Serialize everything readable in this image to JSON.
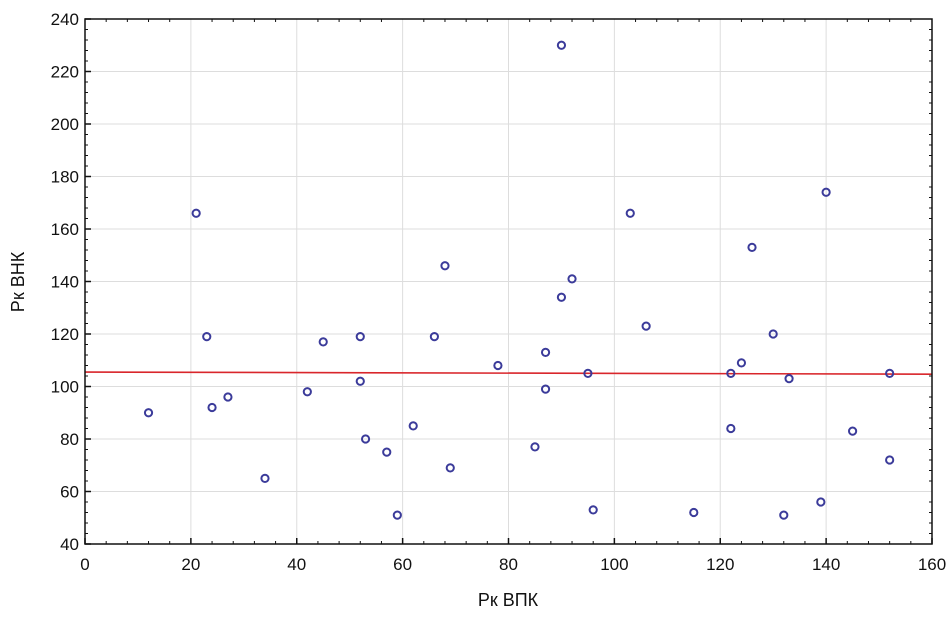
{
  "chart_data": {
    "type": "scatter",
    "title": "",
    "xlabel": "Рк ВПК",
    "ylabel": "Рк ВНК",
    "xlim": [
      0,
      160
    ],
    "ylim": [
      40,
      240
    ],
    "xticks": [
      0,
      20,
      40,
      60,
      80,
      100,
      120,
      140,
      160
    ],
    "yticks": [
      40,
      60,
      80,
      100,
      120,
      140,
      160,
      180,
      200,
      220,
      240
    ],
    "grid": true,
    "marker_color": "#3b3b9a",
    "fit_line_color": "#d9262b",
    "fit_line": {
      "x": [
        0,
        160
      ],
      "y": [
        105.5,
        104.7
      ]
    },
    "points": [
      [
        12,
        90
      ],
      [
        21,
        166
      ],
      [
        23,
        119
      ],
      [
        24,
        92
      ],
      [
        27,
        96
      ],
      [
        34,
        65
      ],
      [
        42,
        98
      ],
      [
        45,
        117
      ],
      [
        52,
        119
      ],
      [
        52,
        102
      ],
      [
        53,
        80
      ],
      [
        57,
        75
      ],
      [
        59,
        51
      ],
      [
        62,
        85
      ],
      [
        66,
        119
      ],
      [
        68,
        146
      ],
      [
        69,
        69
      ],
      [
        78,
        108
      ],
      [
        85,
        77
      ],
      [
        87,
        113
      ],
      [
        87,
        99
      ],
      [
        90,
        230
      ],
      [
        90,
        134
      ],
      [
        92,
        141
      ],
      [
        95,
        105
      ],
      [
        96,
        53
      ],
      [
        103,
        166
      ],
      [
        106,
        123
      ],
      [
        115,
        52
      ],
      [
        122,
        105
      ],
      [
        122,
        84
      ],
      [
        124,
        109
      ],
      [
        126,
        153
      ],
      [
        130,
        120
      ],
      [
        132,
        51
      ],
      [
        133,
        103
      ],
      [
        139,
        56
      ],
      [
        140,
        174
      ],
      [
        145,
        83
      ],
      [
        152,
        105
      ],
      [
        152,
        72
      ]
    ]
  }
}
